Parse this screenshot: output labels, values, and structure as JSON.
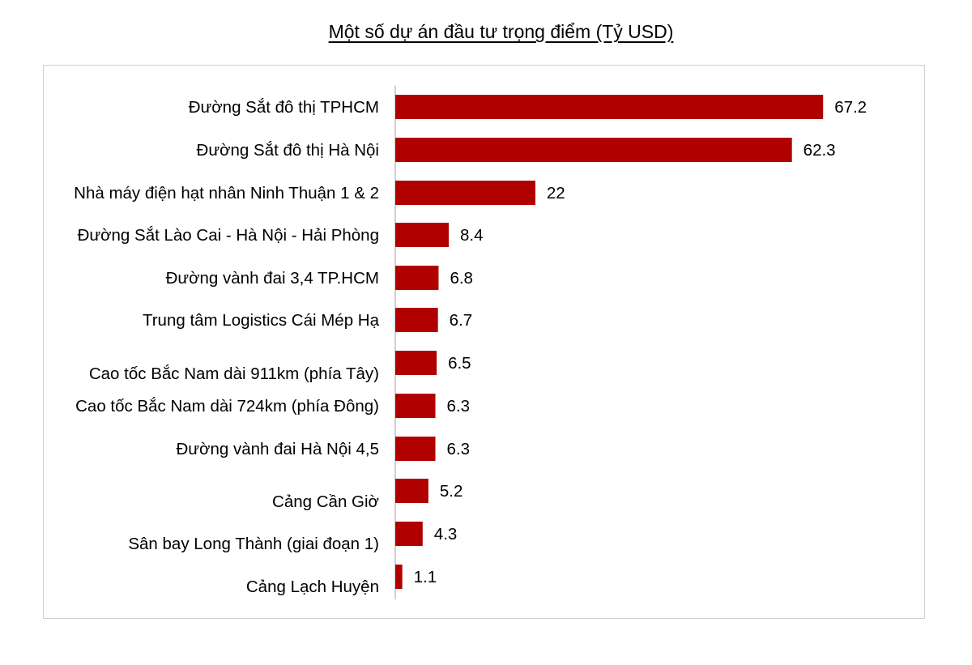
{
  "chart_data": {
    "type": "bar",
    "orientation": "horizontal",
    "title": "Một số dự án đầu tư trọng điểm (Tỷ USD)",
    "xlabel": "",
    "ylabel": "",
    "categories": [
      "Đường Sắt đô thị TPHCM",
      "Đường Sắt đô thị Hà Nội",
      "Nhà máy điện hạt nhân Ninh Thuận 1 & 2",
      "Đường Sắt Lào Cai - Hà Nội - Hải Phòng",
      "Đường vành đai 3,4 TP.HCM",
      "Trung tâm Logistics Cái Mép Hạ",
      "Cao tốc Bắc Nam dài 911km (phía Tây)",
      "Cao tốc Bắc Nam dài 724km (phía Đông)",
      "Đường vành đai Hà Nội 4,5",
      "Cảng Cần Giờ",
      "Sân bay Long Thành (giai đoạn 1)",
      "Cảng Lạch Huyện"
    ],
    "values": [
      67.2,
      62.3,
      22,
      8.4,
      6.8,
      6.7,
      6.5,
      6.3,
      6.3,
      5.2,
      4.3,
      1.1
    ],
    "value_labels": [
      "67.2",
      "62.3",
      "22",
      "8.4",
      "6.8",
      "6.7",
      "6.5",
      "6.3",
      "6.3",
      "5.2",
      "4.3",
      "1.1"
    ],
    "bar_color": "#B00000",
    "grid": false,
    "legend": "none"
  }
}
